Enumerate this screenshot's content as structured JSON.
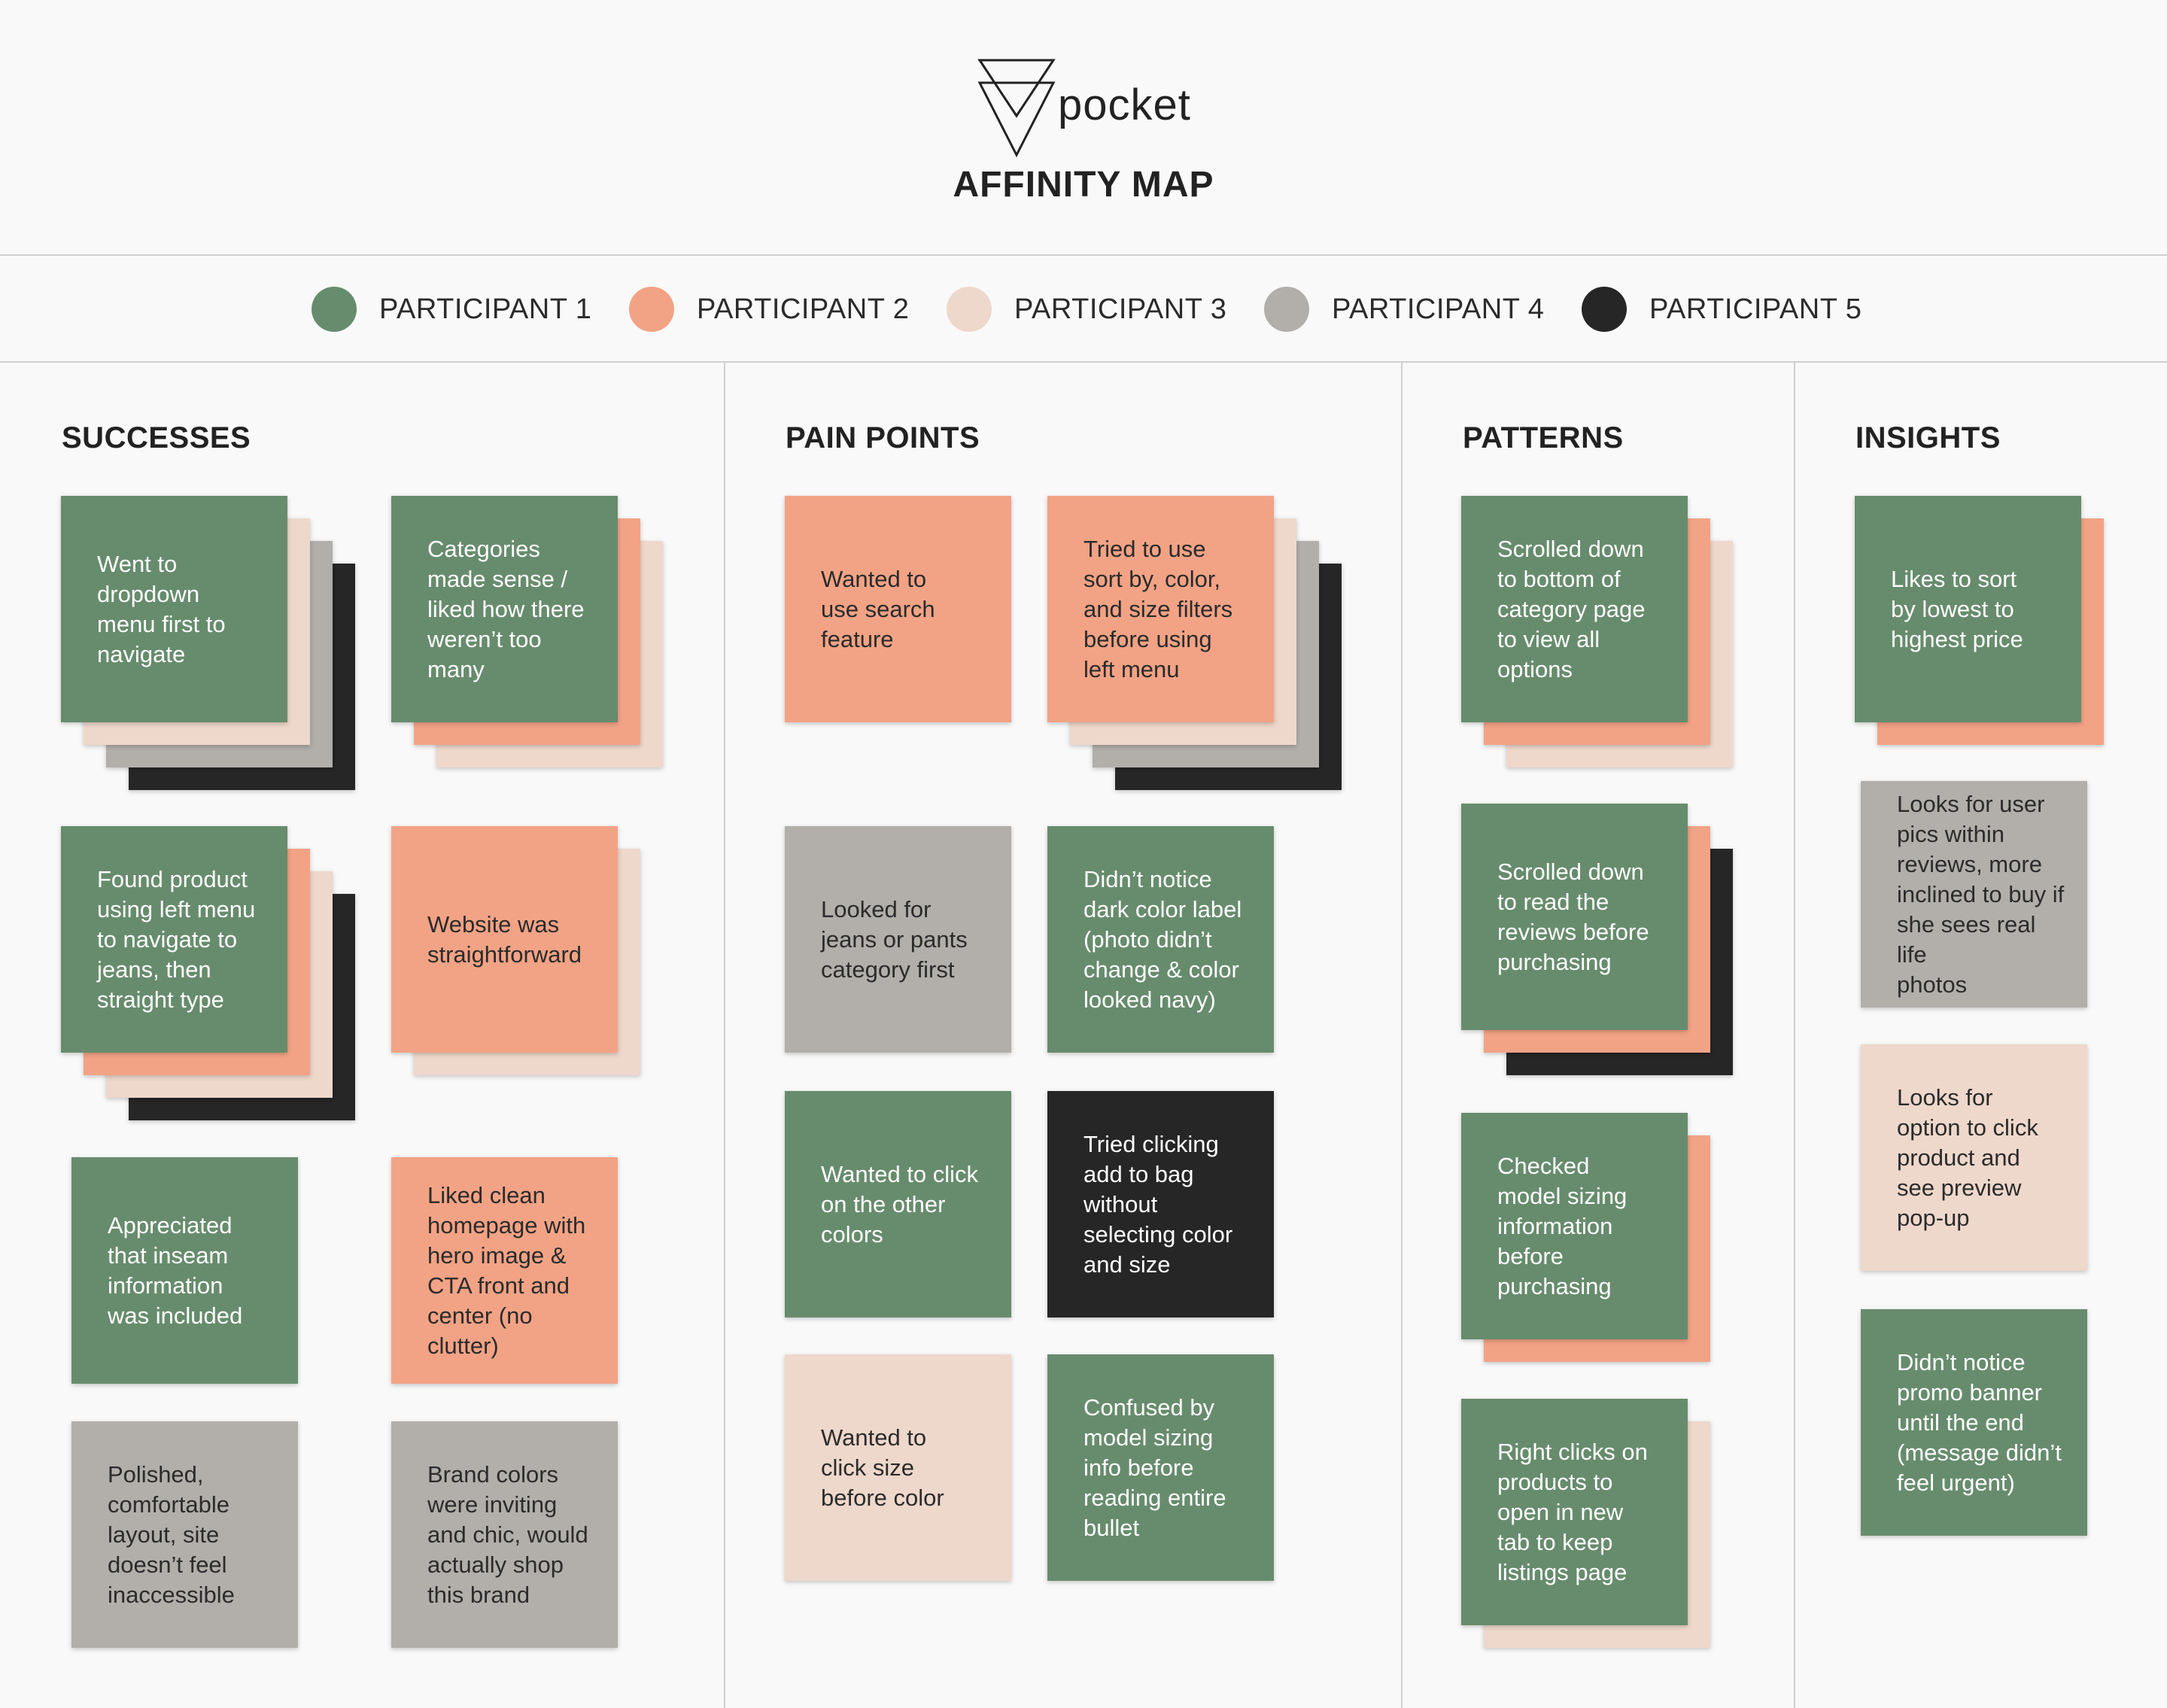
{
  "header": {
    "logo_text": "pocket",
    "title": "AFFINITY MAP"
  },
  "colors": {
    "participant_1": "#678c6d",
    "participant_2": "#f2a385",
    "participant_3": "#eed8cb",
    "participant_4": "#b2aeaa",
    "participant_5": "#262626",
    "background": "#f9f9f9",
    "divider": "#cfcfcf"
  },
  "legend": [
    {
      "label": "PARTICIPANT 1",
      "color": "#678c6d"
    },
    {
      "label": "PARTICIPANT 2",
      "color": "#f2a385"
    },
    {
      "label": "PARTICIPANT 3",
      "color": "#eed8cb"
    },
    {
      "label": "PARTICIPANT 4",
      "color": "#b2aeaa"
    },
    {
      "label": "PARTICIPANT 5",
      "color": "#262626"
    }
  ],
  "columns": {
    "successes": {
      "title": "SUCCESSES",
      "notes": [
        {
          "text": "Went to\ndropdown\nmenu first to\nnavigate",
          "participants": [
            1,
            3,
            4,
            5
          ]
        },
        {
          "text": "Categories\nmade sense /\nliked how there\nweren’t too\nmany",
          "participants": [
            1,
            2,
            3
          ]
        },
        {
          "text": "Found product\nusing left menu\nto navigate to\njeans, then\nstraight type",
          "participants": [
            1,
            2,
            3,
            5
          ]
        },
        {
          "text": "Website was\nstraightforward",
          "participants": [
            2,
            3
          ]
        },
        {
          "text": "Appreciated\nthat inseam\ninformation\nwas included",
          "participants": [
            1
          ]
        },
        {
          "text": "Liked clean\nhomepage with\nhero image &\nCTA front and\ncenter (no\nclutter)",
          "participants": [
            2
          ]
        },
        {
          "text": "Polished,\ncomfortable\nlayout, site\ndoesn’t feel\ninaccessible",
          "participants": [
            4
          ]
        },
        {
          "text": "Brand colors\nwere inviting\nand chic, would\nactually shop\nthis brand",
          "participants": [
            4
          ]
        }
      ]
    },
    "pain_points": {
      "title": "PAIN POINTS",
      "notes": [
        {
          "text": "Wanted to\nuse search\nfeature",
          "participants": [
            2
          ]
        },
        {
          "text": "Tried to use\nsort by, color,\nand size filters\nbefore using\nleft menu",
          "participants": [
            2,
            3,
            4,
            5
          ]
        },
        {
          "text": "Looked for\njeans or pants\ncategory first",
          "participants": [
            4
          ]
        },
        {
          "text": "Didn’t notice\ndark color label\n(photo didn’t\nchange & color\nlooked navy)",
          "participants": [
            1
          ]
        },
        {
          "text": "Wanted to click\non the other\ncolors",
          "participants": [
            1
          ]
        },
        {
          "text": "Tried clicking\nadd to bag\nwithout\nselecting color\nand size",
          "participants": [
            5
          ]
        },
        {
          "text": "Wanted to\nclick size\nbefore color",
          "participants": [
            3
          ]
        },
        {
          "text": "Confused by\nmodel sizing\ninfo before\nreading entire\nbullet",
          "participants": [
            1
          ]
        }
      ]
    },
    "patterns": {
      "title": "PATTERNS",
      "notes": [
        {
          "text": "Scrolled down\nto bottom of\ncategory page\nto view all\noptions",
          "participants": [
            1,
            2,
            3
          ]
        },
        {
          "text": "Scrolled down\nto read the\nreviews before\npurchasing",
          "participants": [
            1,
            2,
            5
          ]
        },
        {
          "text": "Checked\nmodel sizing\ninformation\nbefore\npurchasing",
          "participants": [
            1,
            2
          ]
        },
        {
          "text": "Right clicks on\nproducts to\nopen in new\ntab to keep\nlistings page",
          "participants": [
            1,
            3
          ]
        }
      ]
    },
    "insights": {
      "title": "INSIGHTS",
      "notes": [
        {
          "text": "Likes to sort\nby lowest to\nhighest price",
          "participants": [
            1,
            2
          ]
        },
        {
          "text": "Looks for user\npics within\nreviews, more\ninclined to buy if\nshe sees real life\nphotos",
          "participants": [
            4
          ]
        },
        {
          "text": "Looks for\noption to click\nproduct and\nsee preview\npop-up",
          "participants": [
            3
          ]
        },
        {
          "text": "Didn’t notice\npromo banner\nuntil the end\n(message didn’t\nfeel urgent)",
          "participants": [
            1
          ]
        }
      ]
    }
  }
}
